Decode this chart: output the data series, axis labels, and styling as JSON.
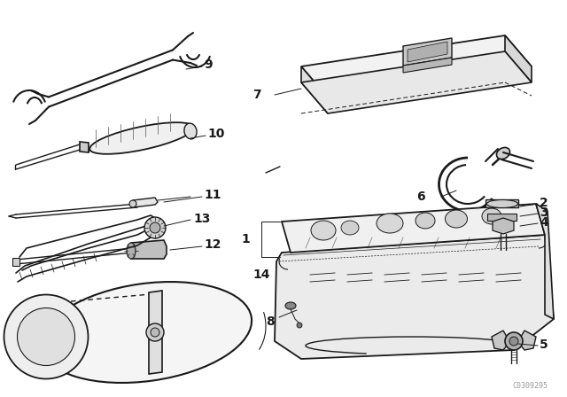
{
  "bg_color": "#ffffff",
  "line_color": "#1a1a1a",
  "fig_width": 6.4,
  "fig_height": 4.48,
  "dpi": 100,
  "watermark": "C0309295"
}
